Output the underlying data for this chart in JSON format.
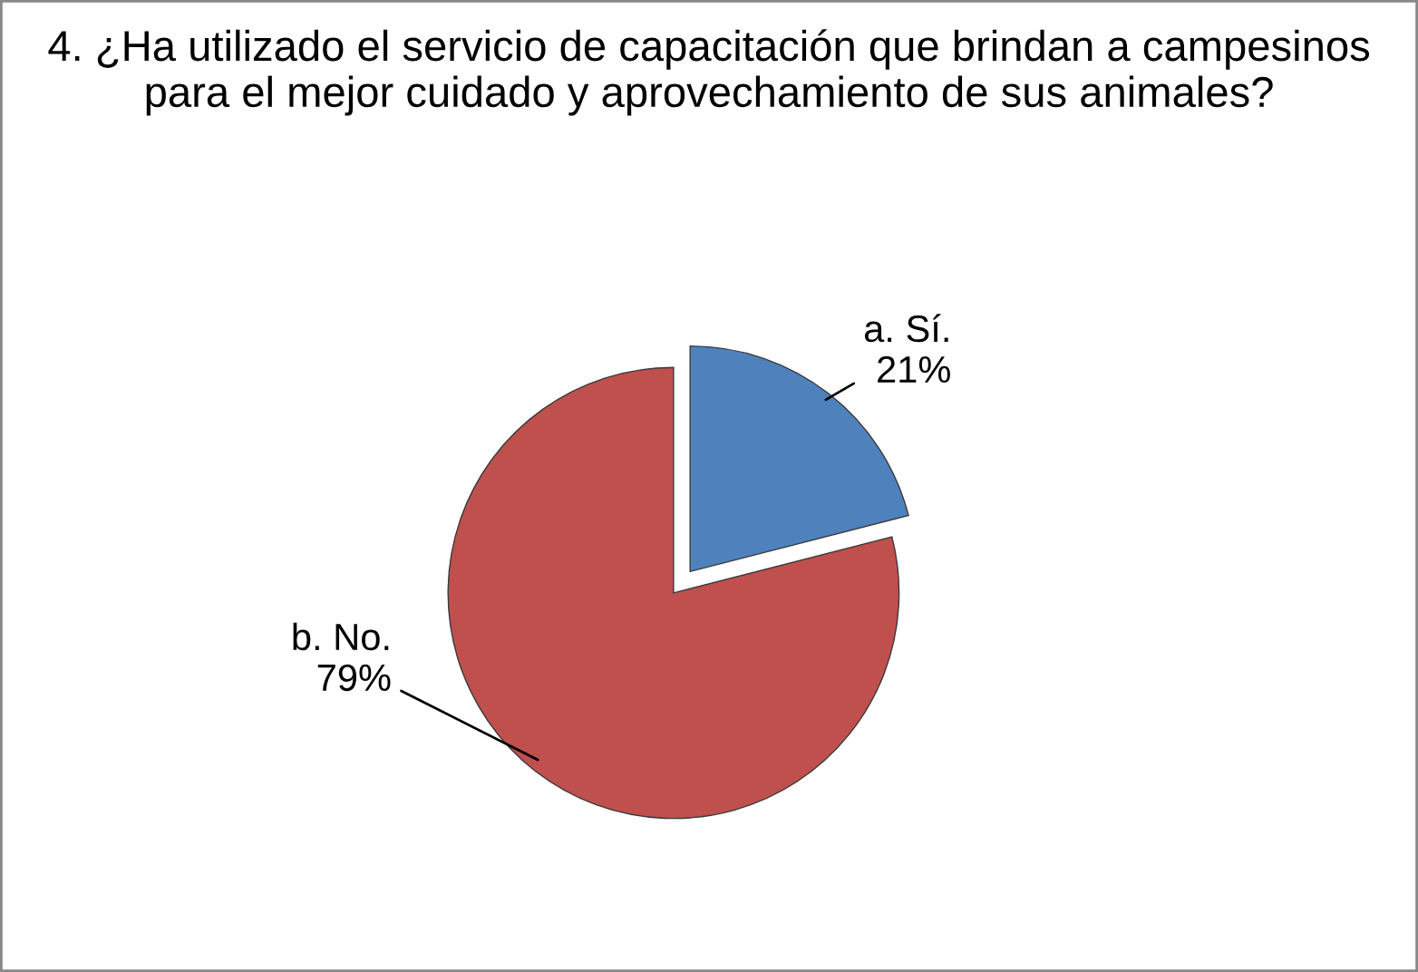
{
  "chart_data": {
    "type": "pie",
    "title": "4. ¿Ha utilizado el servicio de capacitación que brindan a campesinos para el mejor cuidado y aprovechamiento de sus animales?",
    "categories": [
      "a. Sí.",
      "b. No."
    ],
    "values": [
      21,
      79
    ],
    "colors": [
      "#4f81bd",
      "#c0504d"
    ],
    "value_labels": [
      "21%",
      "79%"
    ]
  }
}
